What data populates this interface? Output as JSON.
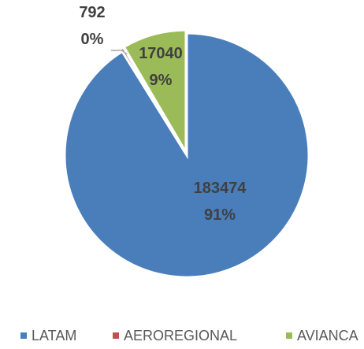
{
  "chart_data": {
    "type": "pie",
    "title": "",
    "categories": [
      "LATAM",
      "AERO REGIONAL",
      "AVIANCA"
    ],
    "values": [
      183474,
      792,
      17040
    ],
    "percent_labels": [
      "91%",
      "0%",
      "9%"
    ],
    "value_labels": [
      "183474",
      "792",
      "17040"
    ],
    "colors": [
      "#4a7ebb",
      "#c0504d",
      "#9bbb59"
    ],
    "legend_position": "bottom",
    "legend_labels": [
      "LATAM",
      "AEROREGIONAL",
      "AVIANCA"
    ]
  }
}
